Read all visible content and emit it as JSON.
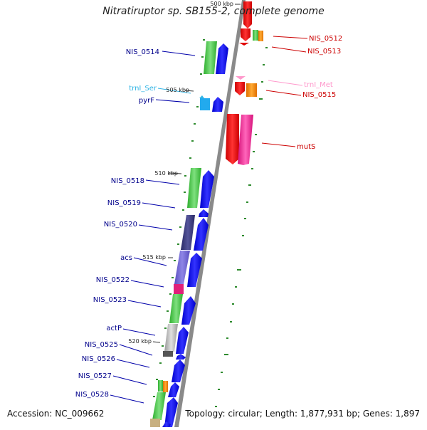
{
  "title": "Nitratiruptor sp. SB155-2, complete genome",
  "footer": {
    "accession": "Accession: NC_009662",
    "topology": "Topology: circular; Length: 1,877,931 bp; Genes: 1,897"
  },
  "colors": {
    "backbone": "#888888",
    "left_label": "#00008b",
    "right_label": "#cc0000",
    "trna_ser": "#33b5e5",
    "trna_met": "#ff99cc",
    "tick": "#228b22"
  },
  "ruler": {
    "top_label": "500 kbp",
    "ticks": [
      "505 kbp",
      "510 kbp",
      "515 kbp",
      "520 kbp"
    ]
  },
  "genes_left": [
    {
      "label": "NIS_0514"
    },
    {
      "label": "trnI_Ser"
    },
    {
      "label": "pyrF"
    },
    {
      "label": "NIS_0518"
    },
    {
      "label": "NIS_0519"
    },
    {
      "label": "NIS_0520"
    },
    {
      "label": "acs"
    },
    {
      "label": "NIS_0522"
    },
    {
      "label": "NIS_0523"
    },
    {
      "label": "actP"
    },
    {
      "label": "NIS_0525"
    },
    {
      "label": "NIS_0526"
    },
    {
      "label": "NIS_0527"
    },
    {
      "label": "NIS_0528"
    }
  ],
  "genes_right": [
    {
      "label": "NIS_0512"
    },
    {
      "label": "NIS_0513"
    },
    {
      "label": "trnI_Met"
    },
    {
      "label": "NIS_0515"
    },
    {
      "label": "mutS"
    }
  ]
}
